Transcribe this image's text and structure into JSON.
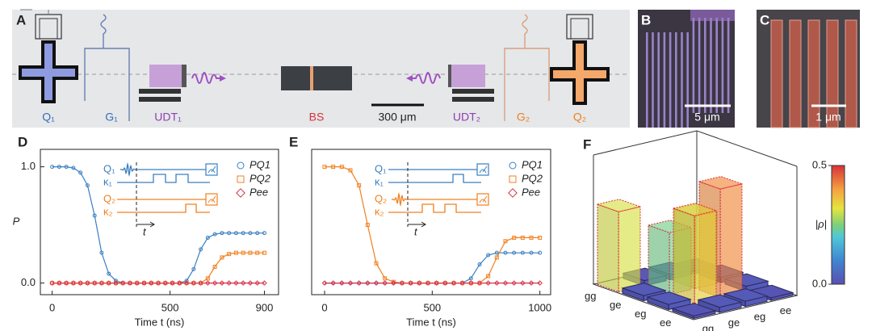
{
  "figure": {
    "A": {
      "panel": "A",
      "labels": [
        "Q₁",
        "G₁",
        "UDT₁",
        "BS",
        "UDT₂",
        "G₂",
        "Q₂"
      ],
      "scale_bar": "300 μm"
    },
    "B": {
      "panel": "B",
      "scale_bar": "5 μm"
    },
    "C": {
      "panel": "C",
      "scale_bar": "1 μm"
    }
  },
  "chart_data": [
    {
      "type": "line",
      "panel": "D",
      "x_label": "Time t (ns)",
      "y_label": "P",
      "x": [
        0,
        30,
        60,
        90,
        120,
        150,
        180,
        210,
        240,
        270,
        300,
        330,
        360,
        390,
        420,
        450,
        480,
        510,
        540,
        570,
        600,
        630,
        660,
        690,
        720,
        750,
        780,
        810,
        840,
        870,
        900
      ],
      "series": [
        {
          "name": "PQ1",
          "color": "#3a7fc0",
          "marker": "circle",
          "values": [
            1.0,
            1.0,
            1.0,
            0.99,
            0.95,
            0.84,
            0.58,
            0.26,
            0.08,
            0.02,
            0,
            0,
            0,
            0,
            0,
            0,
            0,
            0,
            0,
            0.02,
            0.12,
            0.29,
            0.39,
            0.42,
            0.43,
            0.43,
            0.43,
            0.43,
            0.43,
            0.43,
            0.43
          ]
        },
        {
          "name": "PQ2",
          "color": "#f08020",
          "marker": "square",
          "values": [
            0,
            0,
            0,
            0,
            0,
            0,
            0,
            0,
            0,
            0,
            0,
            0,
            0,
            0,
            0,
            0,
            0,
            0,
            0,
            0,
            0,
            0,
            0.04,
            0.14,
            0.22,
            0.25,
            0.26,
            0.26,
            0.26,
            0.26,
            0.26
          ]
        },
        {
          "name": "Pee",
          "color": "#d8324a",
          "marker": "diamond",
          "values": [
            0,
            0,
            0,
            0,
            0,
            0,
            0,
            0,
            0,
            0,
            0,
            0,
            0,
            0,
            0,
            0,
            0,
            0,
            0,
            0,
            0,
            0,
            0,
            0,
            0,
            0,
            0,
            0,
            0,
            0,
            0
          ]
        }
      ],
      "xlim": [
        -50,
        960
      ],
      "xticks": [
        0,
        500,
        900
      ],
      "ylim": [
        -0.1,
        1.15
      ],
      "yticks": [
        {
          "value": 0,
          "label": "0.0"
        },
        {
          "value": 1,
          "label": "1.0"
        }
      ],
      "inset_labels": [
        "Q₁",
        "κ₁",
        "Q₂",
        "κ₂",
        "t"
      ]
    },
    {
      "type": "line",
      "panel": "E",
      "x_label": "Time t (ns)",
      "x": [
        0,
        40,
        80,
        120,
        160,
        200,
        240,
        280,
        320,
        360,
        400,
        440,
        480,
        520,
        560,
        600,
        640,
        680,
        720,
        760,
        800,
        840,
        880,
        920,
        960,
        1000
      ],
      "series": [
        {
          "name": "PQ1",
          "color": "#3a7fc0",
          "marker": "circle",
          "values": [
            0,
            0,
            0,
            0,
            0,
            0,
            0,
            0,
            0,
            0,
            0,
            0,
            0,
            0,
            0,
            0,
            0,
            0.04,
            0.16,
            0.24,
            0.26,
            0.26,
            0.26,
            0.26,
            0.26,
            0.26
          ]
        },
        {
          "name": "PQ2",
          "color": "#f08020",
          "marker": "square",
          "values": [
            1.0,
            1.0,
            1.0,
            0.97,
            0.84,
            0.5,
            0.17,
            0.04,
            0.01,
            0,
            0,
            0,
            0,
            0,
            0,
            0,
            0,
            0,
            0,
            0.06,
            0.22,
            0.36,
            0.39,
            0.39,
            0.39,
            0.39
          ]
        },
        {
          "name": "Pee",
          "color": "#d8324a",
          "marker": "diamond",
          "values": [
            0,
            0,
            0,
            0,
            0,
            0,
            0,
            0,
            0,
            0,
            0,
            0,
            0,
            0,
            0,
            0,
            0,
            0,
            0,
            0,
            0,
            0,
            0,
            0,
            0,
            0
          ]
        }
      ],
      "xlim": [
        -60,
        1050
      ],
      "xticks": [
        0,
        500,
        1000
      ],
      "ylim": [
        -0.1,
        1.15
      ],
      "inset_labels": [
        "Q₁",
        "κ₁",
        "Q₂",
        "κ₂",
        "t"
      ]
    },
    {
      "type": "bar3d",
      "panel": "F",
      "categories": [
        "gg",
        "ge",
        "eg",
        "ee"
      ],
      "values": [
        [
          0.31,
          0.02,
          0.02,
          0.01
        ],
        [
          0.02,
          0.24,
          0.28,
          0.02
        ],
        [
          0.02,
          0.34,
          0.42,
          0.02
        ],
        [
          0.01,
          0.02,
          0.02,
          0.01
        ]
      ],
      "zlim": [
        0,
        0.5
      ],
      "zticks": [
        {
          "value": 0,
          "label": "0.0"
        },
        {
          "value": 0.5,
          "label": "0.5"
        }
      ],
      "colorbar_label": "|ρ|"
    }
  ]
}
